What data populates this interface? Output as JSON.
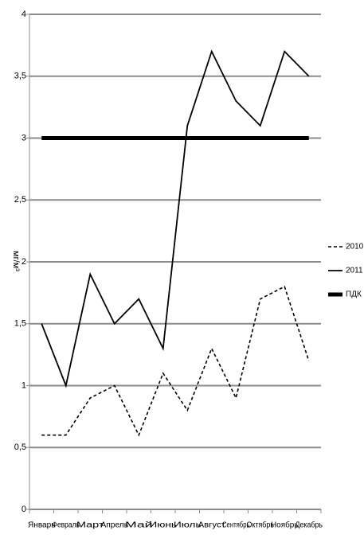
{
  "chart_data": {
    "type": "line",
    "y_label": "мг/м³",
    "categories": [
      "Январь",
      "Февраль",
      "Март",
      "Апрель",
      "Май",
      "Июнь",
      "Июль",
      "Август",
      "Сентябрь",
      "Октябрь",
      "Ноябрь",
      "Декабрь"
    ],
    "series": [
      {
        "name": "2010",
        "color": "#000000",
        "style": "dashed",
        "values": [
          0.6,
          0.6,
          0.9,
          1.0,
          0.6,
          1.1,
          0.8,
          1.3,
          0.9,
          1.7,
          1.8,
          1.2
        ]
      },
      {
        "name": "2011",
        "color": "#000000",
        "style": "solid",
        "values": [
          1.5,
          1.0,
          1.9,
          1.5,
          1.7,
          1.3,
          3.1,
          3.7,
          3.3,
          3.1,
          3.7,
          3.5
        ]
      },
      {
        "name": "ПДК",
        "color": "#000000",
        "style": "thick",
        "values": [
          3,
          3,
          3,
          3,
          3,
          3,
          3,
          3,
          3,
          3,
          3,
          3
        ]
      }
    ],
    "ylim": [
      0,
      4
    ],
    "yticks": [
      0,
      {
        "value": 0.5,
        "label": "0,5"
      },
      1,
      {
        "value": 1.5,
        "label": "1,5"
      },
      2,
      {
        "value": 2.5,
        "label": "2,5"
      },
      3,
      {
        "value": 3.5,
        "label": "3,5"
      },
      4
    ],
    "grid": true,
    "legend": "right"
  }
}
